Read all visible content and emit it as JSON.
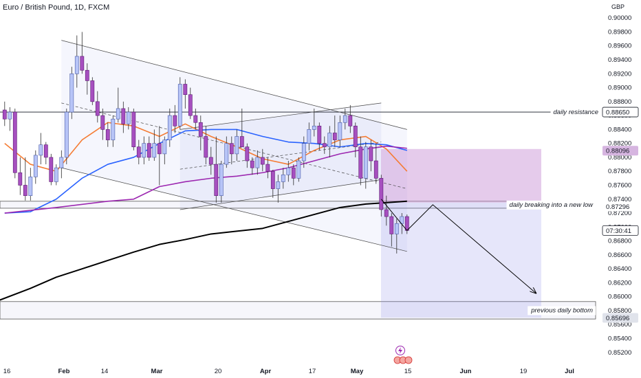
{
  "title": "Euro / British Pound, 1D, FXCM",
  "currency": "GBP",
  "chart_data": {
    "type": "candlestick",
    "symbol": "EURGBP",
    "interval": "1D",
    "ylim": [
      0.8505,
      0.9014
    ],
    "y_ticks": [
      "0.90000",
      "0.89800",
      "0.89600",
      "0.89400",
      "0.89200",
      "0.89000",
      "0.88800",
      "0.88600",
      "0.88400",
      "0.88200",
      "0.88000",
      "0.87800",
      "0.87600",
      "0.87400",
      "0.87200",
      "0.87000",
      "0.86800",
      "0.86600",
      "0.86400",
      "0.86200",
      "0.86000",
      "0.85800",
      "0.85600",
      "0.85400",
      "0.85200"
    ],
    "x_ticks": [
      "16",
      "Feb",
      "14",
      "Mar",
      "20",
      "Apr",
      "17",
      "May",
      "15",
      "Jun",
      "19",
      "Jul"
    ],
    "price_labels": [
      {
        "value": 0.8865,
        "text": "0.88650",
        "style": "outline"
      },
      {
        "value": 0.88096,
        "text": "0.88096",
        "style": "purple"
      },
      {
        "value": 0.87296,
        "text": "0.87296",
        "style": "plain"
      },
      {
        "value": 0.8695,
        "text": "07:30:41",
        "style": "outline"
      },
      {
        "value": 0.85696,
        "text": "0.85696",
        "style": "grey"
      }
    ],
    "annotations": [
      "daily resistance",
      "daily breaking into a new low",
      "previous daily bottom"
    ],
    "levels": [
      {
        "name": "daily resistance",
        "value": 0.8865
      },
      {
        "name": "daily breaking into a new low",
        "low": 0.8727,
        "high": 0.8737
      },
      {
        "name": "previous daily bottom",
        "low": 0.8568,
        "high": 0.8593
      }
    ],
    "candles": [
      {
        "o": 0.8868,
        "h": 0.888,
        "l": 0.8845,
        "c": 0.8855
      },
      {
        "o": 0.8855,
        "h": 0.8872,
        "l": 0.8838,
        "c": 0.8865
      },
      {
        "o": 0.8865,
        "h": 0.887,
        "l": 0.877,
        "c": 0.8778
      },
      {
        "o": 0.8778,
        "h": 0.88,
        "l": 0.8746,
        "c": 0.876
      },
      {
        "o": 0.876,
        "h": 0.88,
        "l": 0.8738,
        "c": 0.8745
      },
      {
        "o": 0.8745,
        "h": 0.8785,
        "l": 0.8738,
        "c": 0.8772
      },
      {
        "o": 0.8772,
        "h": 0.881,
        "l": 0.8762,
        "c": 0.8803
      },
      {
        "o": 0.8803,
        "h": 0.8835,
        "l": 0.879,
        "c": 0.8818
      },
      {
        "o": 0.8818,
        "h": 0.8822,
        "l": 0.879,
        "c": 0.88
      },
      {
        "o": 0.88,
        "h": 0.8805,
        "l": 0.876,
        "c": 0.8765
      },
      {
        "o": 0.8765,
        "h": 0.879,
        "l": 0.876,
        "c": 0.8785
      },
      {
        "o": 0.8785,
        "h": 0.881,
        "l": 0.877,
        "c": 0.88
      },
      {
        "o": 0.88,
        "h": 0.887,
        "l": 0.879,
        "c": 0.8865
      },
      {
        "o": 0.8865,
        "h": 0.893,
        "l": 0.8855,
        "c": 0.892
      },
      {
        "o": 0.892,
        "h": 0.8975,
        "l": 0.89,
        "c": 0.8945
      },
      {
        "o": 0.8945,
        "h": 0.898,
        "l": 0.892,
        "c": 0.8925
      },
      {
        "o": 0.8925,
        "h": 0.8935,
        "l": 0.889,
        "c": 0.891
      },
      {
        "o": 0.891,
        "h": 0.8915,
        "l": 0.8875,
        "c": 0.888
      },
      {
        "o": 0.888,
        "h": 0.8895,
        "l": 0.885,
        "c": 0.886
      },
      {
        "o": 0.886,
        "h": 0.887,
        "l": 0.8825,
        "c": 0.884
      },
      {
        "o": 0.884,
        "h": 0.885,
        "l": 0.8815,
        "c": 0.8825
      },
      {
        "o": 0.8825,
        "h": 0.886,
        "l": 0.8815,
        "c": 0.8855
      },
      {
        "o": 0.8855,
        "h": 0.89,
        "l": 0.885,
        "c": 0.887
      },
      {
        "o": 0.887,
        "h": 0.888,
        "l": 0.8835,
        "c": 0.8848
      },
      {
        "o": 0.8848,
        "h": 0.8872,
        "l": 0.884,
        "c": 0.8865
      },
      {
        "o": 0.8865,
        "h": 0.887,
        "l": 0.881,
        "c": 0.8815
      },
      {
        "o": 0.8815,
        "h": 0.8825,
        "l": 0.879,
        "c": 0.88
      },
      {
        "o": 0.88,
        "h": 0.883,
        "l": 0.879,
        "c": 0.882
      },
      {
        "o": 0.882,
        "h": 0.883,
        "l": 0.8795,
        "c": 0.88
      },
      {
        "o": 0.88,
        "h": 0.884,
        "l": 0.8795,
        "c": 0.882
      },
      {
        "o": 0.882,
        "h": 0.8845,
        "l": 0.876,
        "c": 0.8805
      },
      {
        "o": 0.8805,
        "h": 0.883,
        "l": 0.879,
        "c": 0.8825
      },
      {
        "o": 0.8825,
        "h": 0.887,
        "l": 0.8815,
        "c": 0.886
      },
      {
        "o": 0.886,
        "h": 0.8875,
        "l": 0.8835,
        "c": 0.8845
      },
      {
        "o": 0.8845,
        "h": 0.8915,
        "l": 0.884,
        "c": 0.8905
      },
      {
        "o": 0.8905,
        "h": 0.8912,
        "l": 0.887,
        "c": 0.889
      },
      {
        "o": 0.889,
        "h": 0.89,
        "l": 0.8855,
        "c": 0.886
      },
      {
        "o": 0.886,
        "h": 0.887,
        "l": 0.884,
        "c": 0.885
      },
      {
        "o": 0.885,
        "h": 0.886,
        "l": 0.881,
        "c": 0.883
      },
      {
        "o": 0.883,
        "h": 0.8845,
        "l": 0.879,
        "c": 0.88
      },
      {
        "o": 0.88,
        "h": 0.8815,
        "l": 0.8775,
        "c": 0.879
      },
      {
        "o": 0.879,
        "h": 0.883,
        "l": 0.8735,
        "c": 0.8745
      },
      {
        "o": 0.8745,
        "h": 0.8795,
        "l": 0.8735,
        "c": 0.879
      },
      {
        "o": 0.879,
        "h": 0.883,
        "l": 0.8785,
        "c": 0.882
      },
      {
        "o": 0.882,
        "h": 0.883,
        "l": 0.879,
        "c": 0.8805
      },
      {
        "o": 0.8805,
        "h": 0.884,
        "l": 0.8795,
        "c": 0.883
      },
      {
        "o": 0.883,
        "h": 0.887,
        "l": 0.882,
        "c": 0.8815
      },
      {
        "o": 0.8815,
        "h": 0.882,
        "l": 0.8785,
        "c": 0.8795
      },
      {
        "o": 0.8795,
        "h": 0.88,
        "l": 0.8775,
        "c": 0.8785
      },
      {
        "o": 0.8785,
        "h": 0.881,
        "l": 0.8775,
        "c": 0.88
      },
      {
        "o": 0.88,
        "h": 0.8812,
        "l": 0.878,
        "c": 0.879
      },
      {
        "o": 0.879,
        "h": 0.88,
        "l": 0.877,
        "c": 0.878
      },
      {
        "o": 0.878,
        "h": 0.8782,
        "l": 0.8742,
        "c": 0.8755
      },
      {
        "o": 0.8755,
        "h": 0.8775,
        "l": 0.8735,
        "c": 0.8765
      },
      {
        "o": 0.8765,
        "h": 0.8785,
        "l": 0.8755,
        "c": 0.8775
      },
      {
        "o": 0.8775,
        "h": 0.8795,
        "l": 0.8765,
        "c": 0.8785
      },
      {
        "o": 0.8785,
        "h": 0.879,
        "l": 0.876,
        "c": 0.877
      },
      {
        "o": 0.877,
        "h": 0.88,
        "l": 0.8765,
        "c": 0.8795
      },
      {
        "o": 0.8795,
        "h": 0.883,
        "l": 0.8785,
        "c": 0.882
      },
      {
        "o": 0.882,
        "h": 0.885,
        "l": 0.881,
        "c": 0.884
      },
      {
        "o": 0.884,
        "h": 0.887,
        "l": 0.883,
        "c": 0.8845
      },
      {
        "o": 0.8845,
        "h": 0.885,
        "l": 0.881,
        "c": 0.882
      },
      {
        "o": 0.882,
        "h": 0.883,
        "l": 0.8805,
        "c": 0.8815
      },
      {
        "o": 0.8815,
        "h": 0.8845,
        "l": 0.88,
        "c": 0.8835
      },
      {
        "o": 0.8835,
        "h": 0.886,
        "l": 0.8815,
        "c": 0.8825
      },
      {
        "o": 0.8825,
        "h": 0.886,
        "l": 0.8815,
        "c": 0.885
      },
      {
        "o": 0.885,
        "h": 0.887,
        "l": 0.884,
        "c": 0.886
      },
      {
        "o": 0.886,
        "h": 0.8875,
        "l": 0.8835,
        "c": 0.8845
      },
      {
        "o": 0.8845,
        "h": 0.885,
        "l": 0.88,
        "c": 0.8815
      },
      {
        "o": 0.8815,
        "h": 0.883,
        "l": 0.876,
        "c": 0.877
      },
      {
        "o": 0.877,
        "h": 0.8822,
        "l": 0.8755,
        "c": 0.8815
      },
      {
        "o": 0.8815,
        "h": 0.8825,
        "l": 0.878,
        "c": 0.8795
      },
      {
        "o": 0.8795,
        "h": 0.882,
        "l": 0.8762,
        "c": 0.877
      },
      {
        "o": 0.877,
        "h": 0.8775,
        "l": 0.8715,
        "c": 0.8725
      },
      {
        "o": 0.8725,
        "h": 0.8745,
        "l": 0.8702,
        "c": 0.8715
      },
      {
        "o": 0.8715,
        "h": 0.872,
        "l": 0.8672,
        "c": 0.869
      },
      {
        "o": 0.869,
        "h": 0.8712,
        "l": 0.8662,
        "c": 0.8705
      },
      {
        "o": 0.8705,
        "h": 0.872,
        "l": 0.869,
        "c": 0.8715
      },
      {
        "o": 0.8715,
        "h": 0.8718,
        "l": 0.869,
        "c": 0.8695
      }
    ],
    "moving_averages": [
      {
        "name": "orange",
        "color": "#f57c34",
        "values": [
          [
            0,
            0.882
          ],
          [
            5,
            0.879
          ],
          [
            10,
            0.878
          ],
          [
            15,
            0.8825
          ],
          [
            20,
            0.885
          ],
          [
            25,
            0.8845
          ],
          [
            30,
            0.883
          ],
          [
            35,
            0.8848
          ],
          [
            40,
            0.883
          ],
          [
            45,
            0.8815
          ],
          [
            50,
            0.8798
          ],
          [
            55,
            0.879
          ],
          [
            60,
            0.881
          ],
          [
            65,
            0.8825
          ],
          [
            70,
            0.883
          ],
          [
            74,
            0.8812
          ],
          [
            78,
            0.878
          ]
        ]
      },
      {
        "name": "blue",
        "color": "#2962ff",
        "values": [
          [
            0,
            0.872
          ],
          [
            5,
            0.8722
          ],
          [
            10,
            0.874
          ],
          [
            15,
            0.877
          ],
          [
            20,
            0.879
          ],
          [
            25,
            0.88
          ],
          [
            30,
            0.882
          ],
          [
            35,
            0.8838
          ],
          [
            40,
            0.884
          ],
          [
            45,
            0.884
          ],
          [
            50,
            0.883
          ],
          [
            55,
            0.8822
          ],
          [
            60,
            0.882
          ],
          [
            65,
            0.8815
          ],
          [
            70,
            0.882
          ],
          [
            74,
            0.8818
          ],
          [
            78,
            0.881
          ]
        ]
      },
      {
        "name": "purple",
        "color": "#9c27b0",
        "values": [
          [
            0,
            0.872
          ],
          [
            10,
            0.8728
          ],
          [
            20,
            0.8737
          ],
          [
            25,
            0.874
          ],
          [
            30,
            0.8758
          ],
          [
            35,
            0.8765
          ],
          [
            40,
            0.877
          ],
          [
            45,
            0.8773
          ],
          [
            50,
            0.8778
          ],
          [
            55,
            0.8785
          ],
          [
            60,
            0.8795
          ],
          [
            65,
            0.8805
          ],
          [
            70,
            0.8812
          ],
          [
            74,
            0.8816
          ],
          [
            78,
            0.8813
          ]
        ]
      },
      {
        "name": "black",
        "color": "#000000",
        "values": [
          [
            -1,
            0.8595
          ],
          [
            5,
            0.8612
          ],
          [
            10,
            0.8628
          ],
          [
            15,
            0.864
          ],
          [
            20,
            0.8652
          ],
          [
            25,
            0.8664
          ],
          [
            30,
            0.8675
          ],
          [
            35,
            0.8682
          ],
          [
            40,
            0.869
          ],
          [
            45,
            0.8694
          ],
          [
            50,
            0.8698
          ],
          [
            55,
            0.8708
          ],
          [
            60,
            0.8718
          ],
          [
            65,
            0.8728
          ],
          [
            70,
            0.8733
          ],
          [
            74,
            0.8735
          ],
          [
            78,
            0.8737
          ]
        ]
      }
    ],
    "projection_path": [
      [
        73,
        0.874
      ],
      [
        78,
        0.8695
      ],
      [
        83,
        0.8732
      ],
      [
        103,
        0.8605
      ]
    ]
  }
}
